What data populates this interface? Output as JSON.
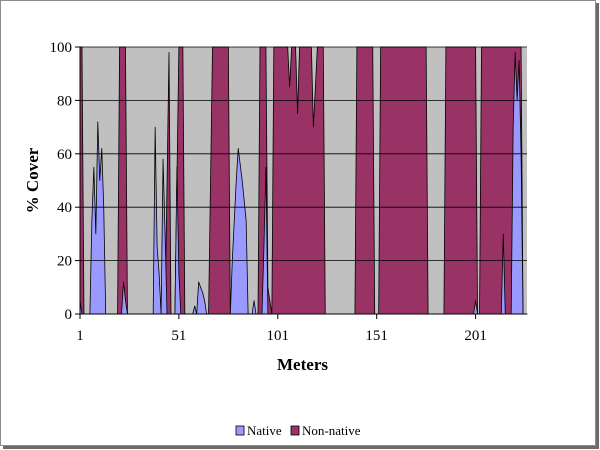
{
  "chart_data": {
    "type": "area",
    "title": "",
    "xlabel": "Meters",
    "ylabel": "% Cover",
    "xlim": [
      1,
      227
    ],
    "ylim": [
      0,
      100
    ],
    "xticks": [
      "1",
      "51",
      "101",
      "151",
      "201"
    ],
    "yticks": [
      "0",
      "20",
      "40",
      "60",
      "80",
      "100"
    ],
    "grid": true,
    "legend_position": "bottom",
    "colors": {
      "plot_background": "#c0c0c0",
      "native": "#9999ff",
      "non_native": "#993366",
      "gridline": "#000000"
    },
    "series": [
      {
        "name": "Non-native",
        "color": "#993366",
        "points": [
          [
            1,
            100
          ],
          [
            2,
            100
          ],
          [
            3,
            0
          ],
          [
            20,
            0
          ],
          [
            21,
            100
          ],
          [
            24,
            100
          ],
          [
            25,
            0
          ],
          [
            44,
            0
          ],
          [
            46,
            98
          ],
          [
            47,
            0
          ],
          [
            49,
            0
          ],
          [
            51,
            100
          ],
          [
            53,
            100
          ],
          [
            54,
            0
          ],
          [
            66,
            0
          ],
          [
            68,
            100
          ],
          [
            76,
            100
          ],
          [
            77,
            0
          ],
          [
            91,
            0
          ],
          [
            92,
            100
          ],
          [
            95,
            100
          ],
          [
            96,
            10
          ],
          [
            98,
            0
          ],
          [
            99,
            100
          ],
          [
            104,
            100
          ],
          [
            106,
            100
          ],
          [
            107,
            85
          ],
          [
            108,
            100
          ],
          [
            110,
            100
          ],
          [
            111,
            75
          ],
          [
            112,
            100
          ],
          [
            118,
            100
          ],
          [
            119,
            70
          ],
          [
            121,
            100
          ],
          [
            124,
            100
          ],
          [
            125,
            0
          ],
          [
            140,
            0
          ],
          [
            141,
            100
          ],
          [
            149,
            100
          ],
          [
            150,
            0
          ],
          [
            152,
            0
          ],
          [
            153,
            100
          ],
          [
            176,
            100
          ],
          [
            177,
            0
          ],
          [
            185,
            0
          ],
          [
            186,
            100
          ],
          [
            201,
            100
          ],
          [
            202,
            0
          ],
          [
            203,
            0
          ],
          [
            204,
            100
          ],
          [
            224,
            100
          ],
          [
            225,
            0
          ],
          [
            227,
            0
          ]
        ]
      },
      {
        "name": "Native",
        "color": "#9999ff",
        "points": [
          [
            1,
            5
          ],
          [
            2,
            0
          ],
          [
            6,
            0
          ],
          [
            7,
            35
          ],
          [
            8,
            55
          ],
          [
            9,
            30
          ],
          [
            10,
            72
          ],
          [
            11,
            50
          ],
          [
            12,
            62
          ],
          [
            13,
            40
          ],
          [
            14,
            0
          ],
          [
            22,
            0
          ],
          [
            23,
            12
          ],
          [
            24,
            5
          ],
          [
            25,
            0
          ],
          [
            38,
            0
          ],
          [
            39,
            70
          ],
          [
            40,
            25
          ],
          [
            41,
            15
          ],
          [
            42,
            0
          ],
          [
            43,
            58
          ],
          [
            44,
            30
          ],
          [
            45,
            0
          ],
          [
            49,
            0
          ],
          [
            50,
            55
          ],
          [
            51,
            15
          ],
          [
            52,
            0
          ],
          [
            58,
            0
          ],
          [
            59,
            3
          ],
          [
            60,
            0
          ],
          [
            61,
            12
          ],
          [
            62,
            10
          ],
          [
            63,
            8
          ],
          [
            64,
            5
          ],
          [
            65,
            0
          ],
          [
            77,
            0
          ],
          [
            78,
            20
          ],
          [
            80,
            50
          ],
          [
            81,
            62
          ],
          [
            83,
            50
          ],
          [
            85,
            35
          ],
          [
            86,
            0
          ],
          [
            88,
            0
          ],
          [
            89,
            5
          ],
          [
            90,
            0
          ],
          [
            93,
            0
          ],
          [
            94,
            25
          ],
          [
            95,
            55
          ],
          [
            96,
            0
          ],
          [
            200,
            0
          ],
          [
            201,
            5
          ],
          [
            202,
            0
          ],
          [
            214,
            0
          ],
          [
            215,
            30
          ],
          [
            216,
            0
          ],
          [
            219,
            0
          ],
          [
            220,
            70
          ],
          [
            221,
            98
          ],
          [
            222,
            80
          ],
          [
            223,
            95
          ],
          [
            224,
            60
          ],
          [
            225,
            0
          ],
          [
            227,
            0
          ]
        ]
      }
    ]
  }
}
